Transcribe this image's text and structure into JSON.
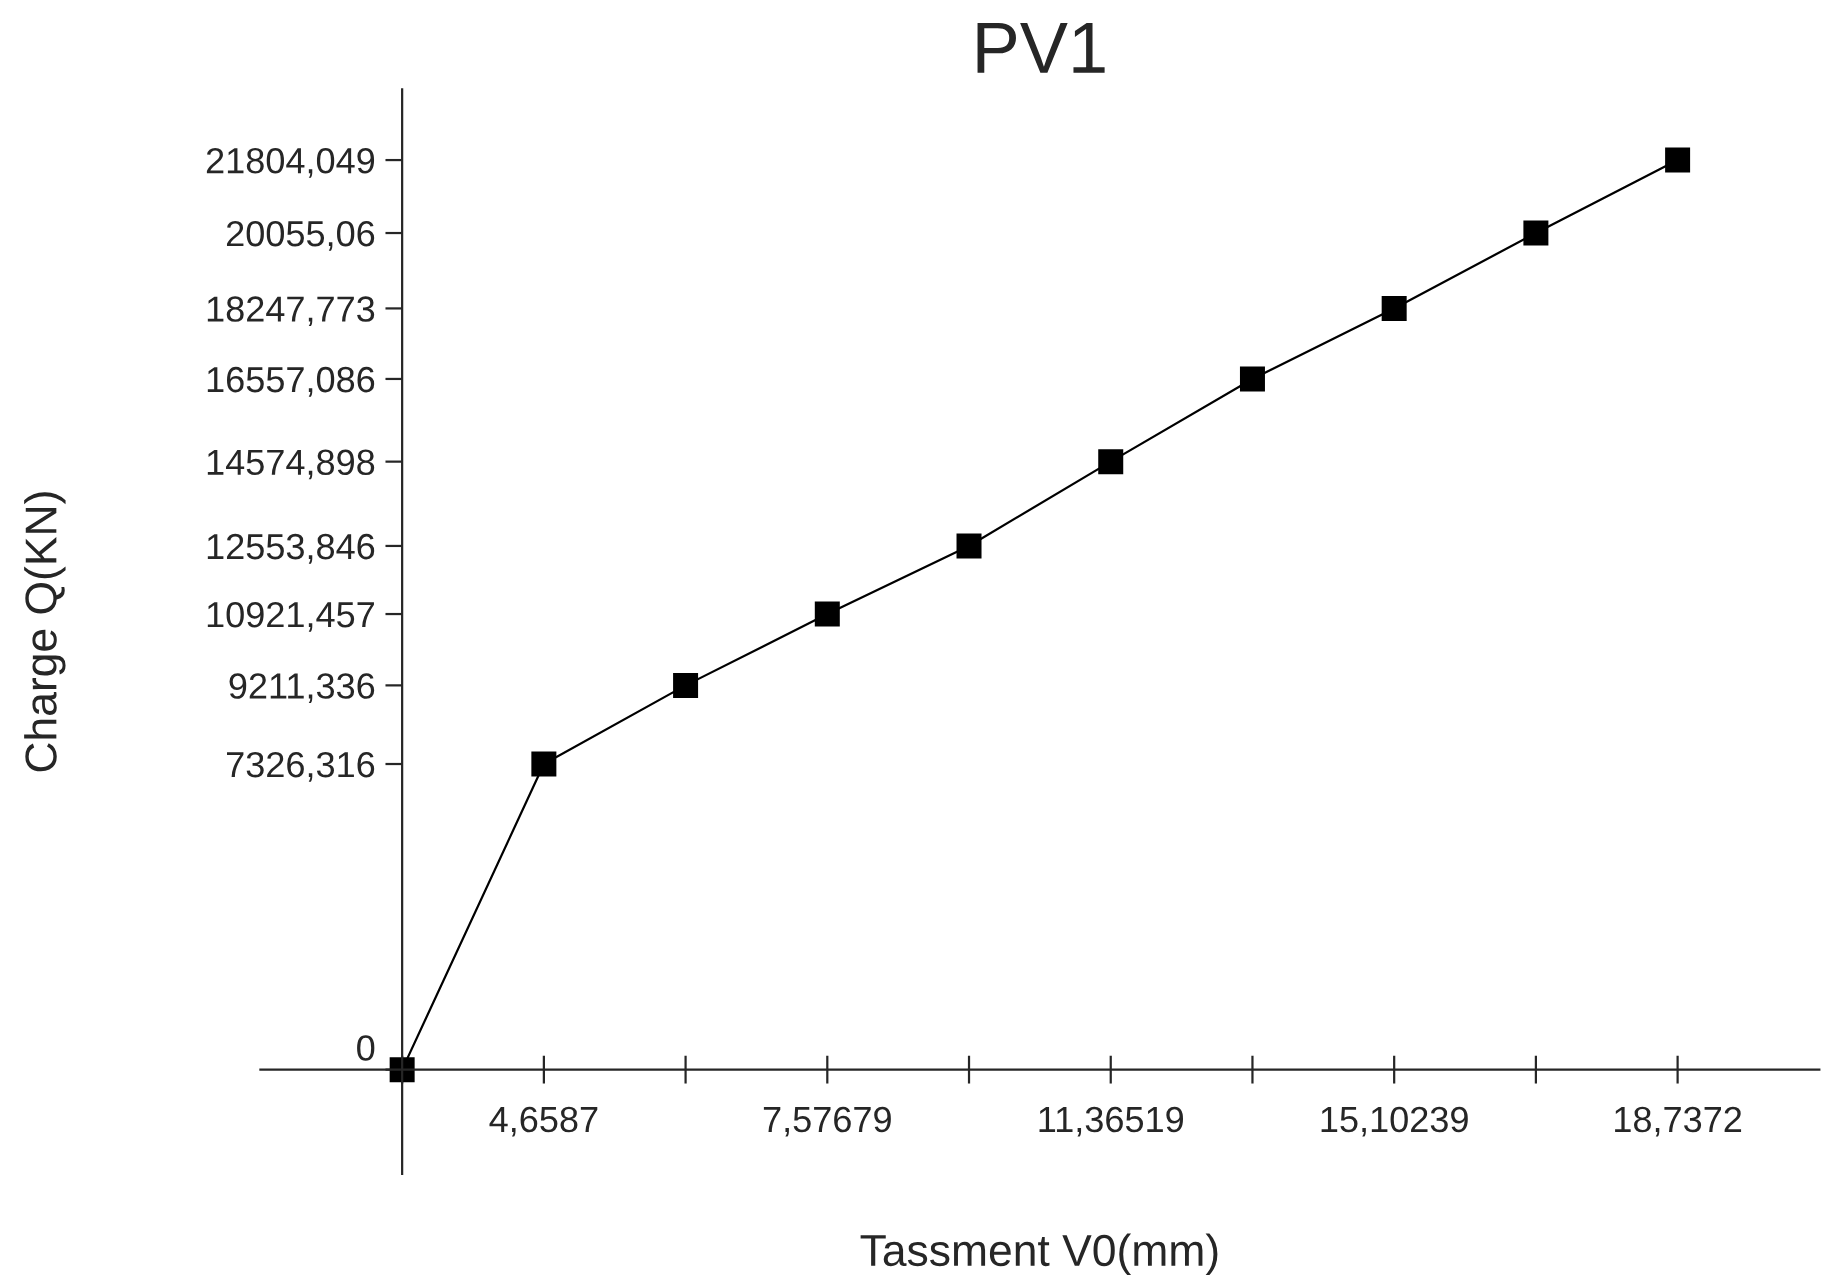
{
  "chart_data": {
    "type": "line",
    "title": "PV1",
    "xlabel": "Tassment V0(mm)",
    "ylabel": "Charge Q(KN)",
    "categories": [
      null,
      "4,6587",
      null,
      "7,57679",
      null,
      "11,36519",
      null,
      "15,10239",
      null,
      "18,7372"
    ],
    "series": [
      {
        "color": "#000000",
        "values": [
          0,
          7326.316,
          9211.336,
          10921.457,
          12553.846,
          14574.898,
          16557.086,
          18247.773,
          20055.06,
          21804.049
        ]
      }
    ],
    "ylim": [
      -2500,
      23500
    ],
    "yticks": [
      0,
      {
        "value": 7326.316,
        "label": "7326,316"
      },
      {
        "value": 9211.336,
        "label": "9211,336"
      },
      {
        "value": 10921.457,
        "label": "10921,457"
      },
      {
        "value": 12553.846,
        "label": "12553,846"
      },
      {
        "value": 14574.898,
        "label": "14574,898"
      },
      {
        "value": 16557.086,
        "label": "16557,086"
      },
      {
        "value": 18247.773,
        "label": "18247,773"
      },
      {
        "value": 20055.06,
        "label": "20055,06"
      },
      {
        "value": 21804.049,
        "label": "21804,049"
      }
    ],
    "marker": "square",
    "line_style": "solid",
    "grid": false,
    "legend": false
  }
}
